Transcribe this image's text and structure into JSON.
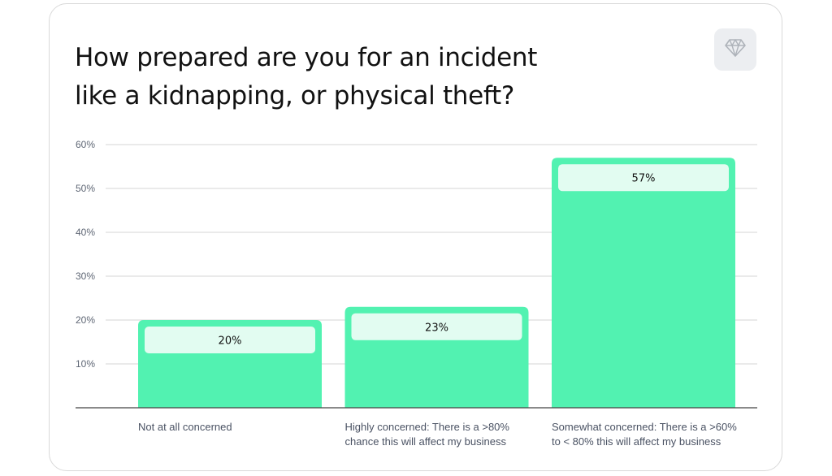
{
  "title_line1": "How prepared are you for an incident",
  "title_line2": "like a kidnapping, or physical theft?",
  "logo_icon": "diamond-icon",
  "colors": {
    "bar": "#52f2b1",
    "label_box": "#e2fcf1",
    "grid": "#d4d4d4",
    "baseline": "#444444"
  },
  "chart_data": {
    "type": "bar",
    "title": "How prepared are you for an incident like a kidnapping, or physical theft?",
    "categories": [
      [
        "Not at all concerned"
      ],
      [
        "Highly concerned: There is a >80%",
        "chance this will affect my business"
      ],
      [
        "Somewhat concerned: There is a >60%",
        "to < 80% this will affect my business"
      ]
    ],
    "values": [
      20,
      23,
      57
    ],
    "data_labels": [
      "20%",
      "23%",
      "57%"
    ],
    "y_ticks": [
      10,
      20,
      30,
      40,
      50,
      60
    ],
    "y_tick_labels": [
      "10%",
      "20%",
      "30%",
      "40%",
      "50%",
      "60%"
    ],
    "ylim": [
      0,
      60
    ],
    "grid": true,
    "legend": "none"
  }
}
